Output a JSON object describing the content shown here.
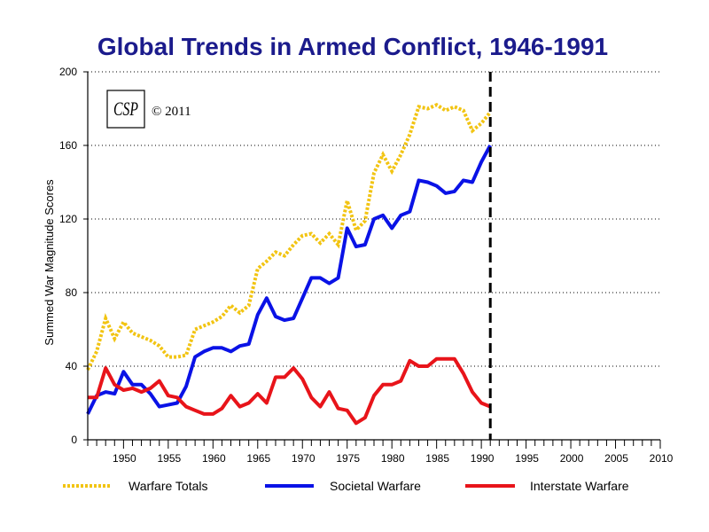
{
  "colors": {
    "warfare_totals": "#f2c412",
    "societal_warfare": "#0a12e6",
    "interstate_warfare": "#e8141a",
    "title": "#1b1b8c",
    "axis": "#000000",
    "grid": "#000000"
  },
  "logo": {
    "text": "CSP",
    "copyright": "© 2011"
  },
  "chart_data": {
    "type": "line",
    "title": "Global Trends in Armed Conflict, 1946-1991",
    "xlabel": "",
    "ylabel": "Summed War Magnitude Scores",
    "xlim": [
      1946,
      2010
    ],
    "ylim": [
      0,
      200
    ],
    "x_ticks": [
      1950,
      1955,
      1960,
      1965,
      1970,
      1975,
      1980,
      1985,
      1990,
      1995,
      2000,
      2005,
      2010
    ],
    "y_ticks": [
      0,
      40,
      80,
      120,
      160,
      200
    ],
    "grid": "horizontal dotted",
    "legend_position": "bottom",
    "marker_line": {
      "x": 1991,
      "style": "dashed"
    },
    "x": [
      1946,
      1947,
      1948,
      1949,
      1950,
      1951,
      1952,
      1953,
      1954,
      1955,
      1956,
      1957,
      1958,
      1959,
      1960,
      1961,
      1962,
      1963,
      1964,
      1965,
      1966,
      1967,
      1968,
      1969,
      1970,
      1971,
      1972,
      1973,
      1974,
      1975,
      1976,
      1977,
      1978,
      1979,
      1980,
      1981,
      1982,
      1983,
      1984,
      1985,
      1986,
      1987,
      1988,
      1989,
      1990,
      1991
    ],
    "series": [
      {
        "name": "Warfare Totals",
        "style": "dotted",
        "values": [
          38,
          48,
          66,
          55,
          64,
          58,
          56,
          54,
          51,
          45,
          45,
          46,
          60,
          62,
          64,
          67,
          73,
          69,
          73,
          93,
          97,
          102,
          100,
          106,
          111,
          112,
          107,
          112,
          106,
          130,
          114,
          119,
          145,
          155,
          146,
          155,
          166,
          181,
          180,
          182,
          179,
          181,
          179,
          168,
          172,
          178
        ]
      },
      {
        "name": "Societal Warfare",
        "style": "solid",
        "values": [
          14,
          24,
          26,
          25,
          37,
          30,
          30,
          25,
          18,
          19,
          20,
          29,
          45,
          48,
          50,
          50,
          48,
          51,
          52,
          68,
          77,
          67,
          65,
          66,
          77,
          88,
          88,
          85,
          88,
          115,
          105,
          106,
          120,
          122,
          115,
          122,
          124,
          141,
          140,
          138,
          134,
          135,
          141,
          140,
          151,
          160
        ]
      },
      {
        "name": "Interstate Warfare",
        "style": "solid",
        "values": [
          23,
          23,
          39,
          30,
          27,
          28,
          26,
          28,
          32,
          24,
          23,
          18,
          16,
          14,
          14,
          17,
          24,
          18,
          20,
          25,
          20,
          34,
          34,
          39,
          33,
          23,
          18,
          26,
          17,
          16,
          9,
          12,
          24,
          30,
          30,
          32,
          43,
          40,
          40,
          44,
          44,
          44,
          36,
          26,
          20,
          18
        ]
      }
    ]
  }
}
